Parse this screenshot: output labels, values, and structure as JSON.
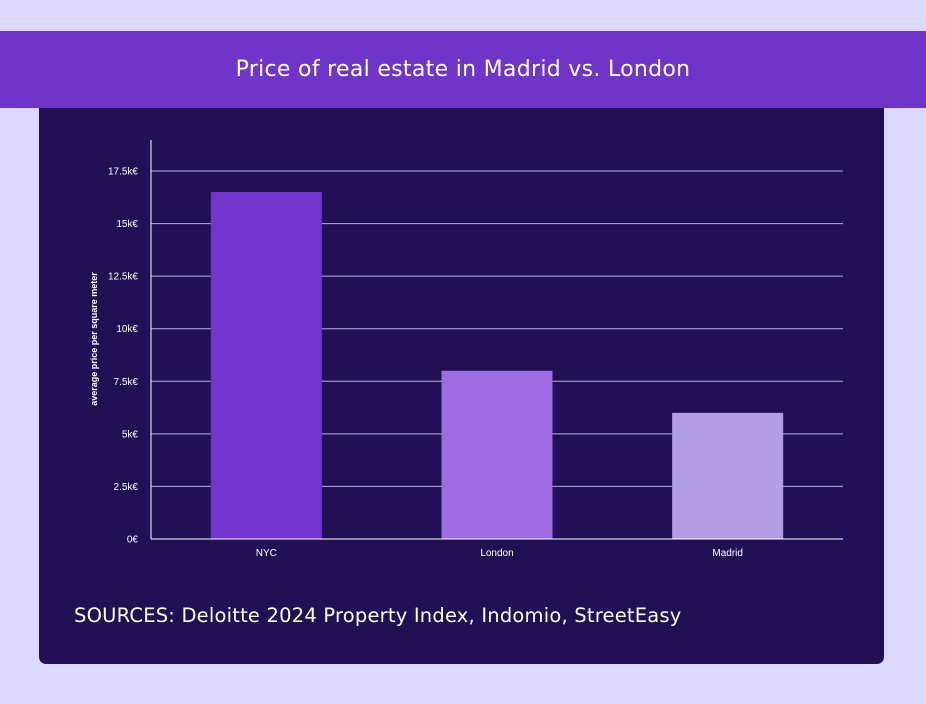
{
  "page": {
    "title": "Price of real estate in Madrid vs. London",
    "sources": "SOURCES: Deloitte 2024 Property Index, Indomio, StreetEasy"
  },
  "colors": {
    "background": "#dcd8fc",
    "title_band": "#6f35c9",
    "panel": "#221055",
    "gridline": "#b9aee6",
    "axis_text": "#ffffff"
  },
  "chart_data": {
    "type": "bar",
    "title": "Price of real estate in Madrid vs. London",
    "xlabel": "",
    "ylabel": "average price per square meter",
    "categories": [
      "NYC",
      "London",
      "Madrid"
    ],
    "values": [
      16500,
      8000,
      6000
    ],
    "bar_colors": [
      "#7135cc",
      "#9d6be2",
      "#b39ee6"
    ],
    "ylim": [
      0,
      17500
    ],
    "yticks": [
      0,
      2500,
      5000,
      7500,
      10000,
      12500,
      15000,
      17500
    ],
    "ytick_labels": [
      "0€",
      "2.5k€",
      "5k€",
      "7.5k€",
      "10k€",
      "12.5k€",
      "15k€",
      "17.5k€"
    ],
    "grid": true,
    "legend": "none"
  }
}
